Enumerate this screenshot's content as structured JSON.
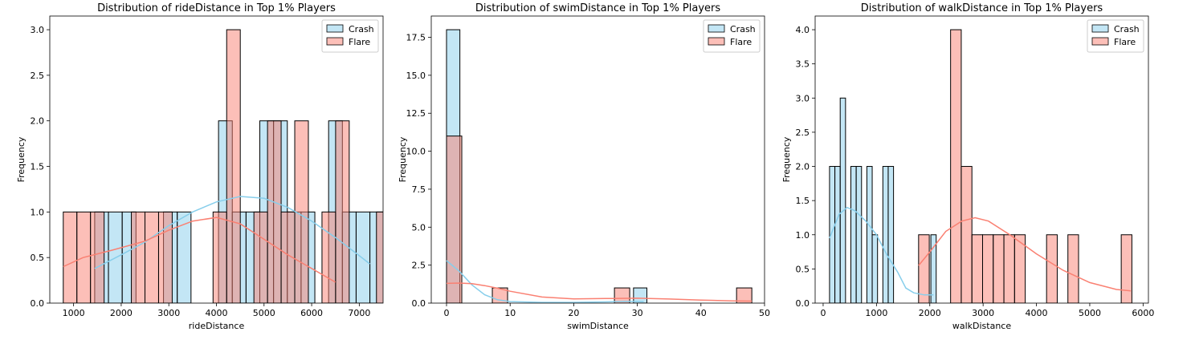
{
  "figure": {
    "background": "#ffffff",
    "colors": {
      "crash": "#87ceeb",
      "flare": "#fa8072"
    }
  },
  "chart_data": [
    {
      "type": "histogram",
      "title": "Distribution of rideDistance in Top 1% Players",
      "xlabel": "rideDistance",
      "ylabel": "Frequency",
      "xlim": [
        500,
        7500
      ],
      "ylim": [
        0,
        3.15
      ],
      "xticks": [
        1000,
        2000,
        3000,
        4000,
        5000,
        6000,
        7000
      ],
      "yticks": [
        0.0,
        0.5,
        1.0,
        1.5,
        2.0,
        2.5,
        3.0
      ],
      "xtick_labels": [
        "1000",
        "2000",
        "3000",
        "4000",
        "5000",
        "6000",
        "7000"
      ],
      "ytick_labels": [
        "0.0",
        "0.5",
        "1.0",
        "1.5",
        "2.0",
        "2.5",
        "3.0"
      ],
      "legend": {
        "position": "top-right",
        "entries": [
          "Crash",
          "Flare"
        ]
      },
      "series": [
        {
          "name": "Crash",
          "color": "#87ceeb",
          "bin_start": 1443,
          "bin_width": 289,
          "counts": [
            1,
            1,
            1,
            0,
            0,
            1,
            1,
            0,
            0,
            2,
            1,
            1,
            2,
            2,
            1,
            1,
            0,
            2,
            1,
            1,
            1,
            1
          ],
          "kde": [
            [
              1443,
              0.38
            ],
            [
              2000,
              0.53
            ],
            [
              2500,
              0.67
            ],
            [
              3000,
              0.85
            ],
            [
              3500,
              1.0
            ],
            [
              4000,
              1.11
            ],
            [
              4500,
              1.17
            ],
            [
              5000,
              1.15
            ],
            [
              5500,
              1.05
            ],
            [
              6000,
              0.9
            ],
            [
              6500,
              0.72
            ],
            [
              7000,
              0.52
            ],
            [
              7221,
              0.43
            ]
          ]
        },
        {
          "name": "Flare",
          "color": "#fa8072",
          "bin_start": 783,
          "bin_width": 286,
          "counts": [
            1,
            1,
            1,
            0,
            0,
            1,
            1,
            1,
            0,
            0,
            0,
            1,
            3,
            0,
            1,
            2,
            1,
            2,
            0,
            1,
            2,
            0,
            0,
            1,
            1
          ],
          "kde": [
            [
              783,
              0.4
            ],
            [
              1200,
              0.5
            ],
            [
              1800,
              0.58
            ],
            [
              2500,
              0.68
            ],
            [
              3000,
              0.8
            ],
            [
              3500,
              0.9
            ],
            [
              4000,
              0.94
            ],
            [
              4500,
              0.87
            ],
            [
              5000,
              0.7
            ],
            [
              5500,
              0.53
            ],
            [
              6000,
              0.38
            ],
            [
              6500,
              0.23
            ]
          ]
        }
      ]
    },
    {
      "type": "histogram",
      "title": "Distribution of swimDistance in Top 1% Players",
      "xlabel": "swimDistance",
      "ylabel": "Frequency",
      "xlim": [
        -2.4,
        50
      ],
      "ylim": [
        0,
        18.9
      ],
      "xticks": [
        0,
        10,
        20,
        30,
        40,
        50
      ],
      "yticks": [
        0.0,
        2.5,
        5.0,
        7.5,
        10.0,
        12.5,
        15.0,
        17.5
      ],
      "xtick_labels": [
        "0",
        "10",
        "20",
        "30",
        "40",
        "50"
      ],
      "ytick_labels": [
        "0.0",
        "2.5",
        "5.0",
        "7.5",
        "10.0",
        "12.5",
        "15.0",
        "17.5"
      ],
      "legend": {
        "position": "top-right",
        "entries": [
          "Crash",
          "Flare"
        ]
      },
      "series": [
        {
          "name": "Crash",
          "color": "#87ceeb",
          "bin_start": 0,
          "bin_width": 2.1,
          "counts": [
            18,
            0,
            0,
            0,
            0,
            0,
            0,
            0,
            0,
            0,
            0,
            0,
            0,
            0,
            1
          ],
          "kde": [
            [
              0,
              2.8
            ],
            [
              2,
              2.1
            ],
            [
              4,
              1.2
            ],
            [
              6,
              0.55
            ],
            [
              8,
              0.22
            ],
            [
              10,
              0.1
            ],
            [
              15,
              0.05
            ],
            [
              20,
              0.05
            ],
            [
              25,
              0.08
            ],
            [
              28,
              0.12
            ],
            [
              31,
              0.1
            ]
          ]
        },
        {
          "name": "Flare",
          "color": "#fa8072",
          "bin_start": 0,
          "bin_width": 2.4,
          "counts": [
            11,
            0,
            0,
            1,
            0,
            0,
            0,
            0,
            0,
            0,
            0,
            1,
            0,
            0,
            0,
            0,
            0,
            0,
            0,
            1
          ],
          "kde": [
            [
              0,
              1.3
            ],
            [
              2,
              1.32
            ],
            [
              4,
              1.28
            ],
            [
              6,
              1.15
            ],
            [
              8,
              0.98
            ],
            [
              10,
              0.78
            ],
            [
              15,
              0.4
            ],
            [
              20,
              0.28
            ],
            [
              25,
              0.3
            ],
            [
              30,
              0.32
            ],
            [
              35,
              0.27
            ],
            [
              40,
              0.2
            ],
            [
              45,
              0.15
            ],
            [
              48,
              0.13
            ]
          ]
        }
      ]
    },
    {
      "type": "histogram",
      "title": "Distribution of walkDistance in Top 1% Players",
      "xlabel": "walkDistance",
      "ylabel": "Frequency",
      "xlim": [
        -150,
        6100
      ],
      "ylim": [
        0,
        4.2
      ],
      "xticks": [
        0,
        1000,
        2000,
        3000,
        4000,
        5000,
        6000
      ],
      "yticks": [
        0.0,
        0.5,
        1.0,
        1.5,
        2.0,
        2.5,
        3.0,
        3.5,
        4.0
      ],
      "xtick_labels": [
        "0",
        "1000",
        "2000",
        "3000",
        "4000",
        "5000",
        "6000"
      ],
      "ytick_labels": [
        "0.0",
        "0.5",
        "1.0",
        "1.5",
        "2.0",
        "2.5",
        "3.0",
        "3.5",
        "4.0"
      ],
      "legend": {
        "position": "top-right",
        "entries": [
          "Crash",
          "Flare"
        ]
      },
      "series": [
        {
          "name": "Crash",
          "color": "#87ceeb",
          "bin_start": 120,
          "bin_width": 100,
          "counts": [
            2,
            2,
            3,
            0,
            2,
            2,
            0,
            2,
            1,
            0,
            2,
            2,
            0,
            0,
            0,
            0,
            0,
            0,
            0,
            1
          ],
          "kde": [
            [
              120,
              0.95
            ],
            [
              300,
              1.3
            ],
            [
              450,
              1.4
            ],
            [
              600,
              1.35
            ],
            [
              800,
              1.2
            ],
            [
              1000,
              1.0
            ],
            [
              1200,
              0.7
            ],
            [
              1400,
              0.45
            ],
            [
              1550,
              0.22
            ],
            [
              1700,
              0.15
            ],
            [
              1900,
              0.12
            ],
            [
              2070,
              0.12
            ]
          ]
        },
        {
          "name": "Flare",
          "color": "#fa8072",
          "bin_start": 1790,
          "bin_width": 200,
          "counts": [
            1,
            0,
            0,
            4,
            2,
            1,
            1,
            1,
            1,
            1,
            0,
            0,
            1,
            0,
            1,
            0,
            0,
            0,
            0,
            1
          ],
          "kde": [
            [
              1790,
              0.55
            ],
            [
              2000,
              0.75
            ],
            [
              2300,
              1.05
            ],
            [
              2600,
              1.2
            ],
            [
              2850,
              1.25
            ],
            [
              3100,
              1.2
            ],
            [
              3500,
              1.0
            ],
            [
              4000,
              0.72
            ],
            [
              4500,
              0.48
            ],
            [
              5000,
              0.3
            ],
            [
              5500,
              0.2
            ],
            [
              5770,
              0.18
            ]
          ]
        }
      ]
    }
  ]
}
